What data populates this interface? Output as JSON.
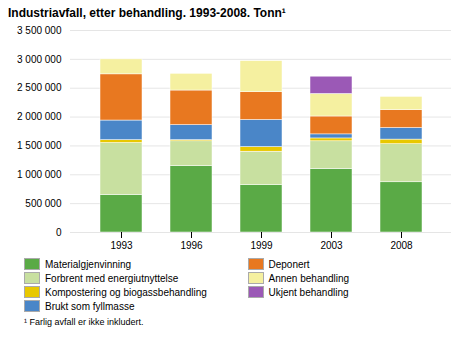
{
  "chart_data": {
    "type": "bar",
    "stacked": true,
    "title": "Industriavfall, etter behandling. 1993-2008. Tonn¹",
    "footnote": "¹ Farlig avfall er ikke inkludert.",
    "categories": [
      "1993",
      "1996",
      "1999",
      "2003",
      "2008"
    ],
    "series": [
      {
        "name": "Materialgjenvinning",
        "color": "#5aaa46",
        "values": [
          650000,
          1150000,
          820000,
          1100000,
          870000
        ]
      },
      {
        "name": "Forbrent med energiutnyttelse",
        "color": "#c8e0a0",
        "values": [
          900000,
          430000,
          580000,
          480000,
          660000
        ]
      },
      {
        "name": "Kompostering og biogassbehandling",
        "color": "#e8c800",
        "values": [
          50000,
          20000,
          80000,
          50000,
          80000
        ]
      },
      {
        "name": "Brukt som fyllmasse",
        "color": "#4a86c8",
        "values": [
          340000,
          260000,
          470000,
          70000,
          200000
        ]
      },
      {
        "name": "Deponert",
        "color": "#e87820",
        "values": [
          800000,
          600000,
          480000,
          310000,
          310000
        ]
      },
      {
        "name": "Annen behandling",
        "color": "#f5f0a0",
        "values": [
          260000,
          290000,
          540000,
          390000,
          230000
        ]
      },
      {
        "name": "Ukjent behandling",
        "color": "#9b59b6",
        "values": [
          0,
          0,
          0,
          300000,
          0
        ]
      }
    ],
    "ylim": [
      0,
      3500000
    ],
    "yticks": [
      0,
      {
        "value": 500000,
        "label": "500 000"
      },
      {
        "value": 1000000,
        "label": "1 000 000"
      },
      {
        "value": 1500000,
        "label": "1 500 000"
      },
      {
        "value": 2000000,
        "label": "2 000 000"
      },
      {
        "value": 2500000,
        "label": "2 500 000"
      },
      {
        "value": 3000000,
        "label": "3 000 000"
      },
      {
        "value": 3500000,
        "label": "3 500 000"
      }
    ],
    "grid": true,
    "legend": "bottom"
  }
}
